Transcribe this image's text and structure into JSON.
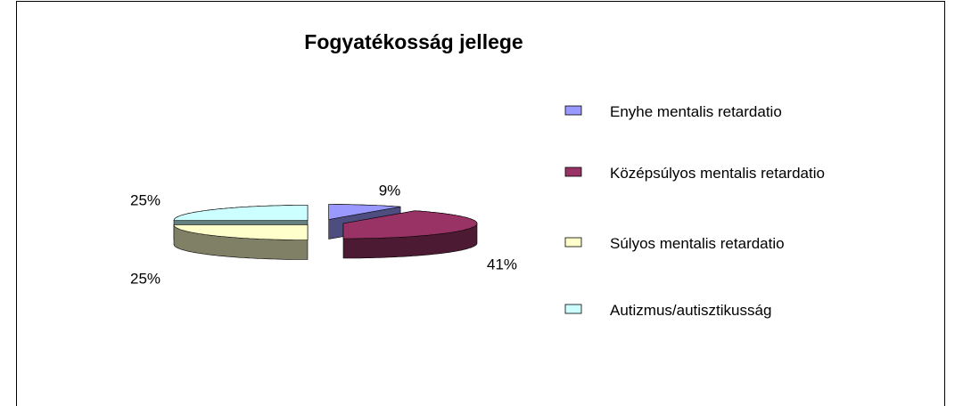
{
  "chart_data": {
    "type": "pie3d",
    "title": "Fogyatékosság jellege",
    "categories": [
      "Enyhe mentalis retardatio",
      "Középsúlyos mentalis retardatio",
      "Súlyos mentalis retardatio",
      "Autizmus/autisztikusság"
    ],
    "values": [
      9,
      41,
      25,
      25
    ],
    "value_labels": [
      "9%",
      "41%",
      "25%",
      "25%"
    ],
    "colors": [
      "#9999ff",
      "#993366",
      "#ffffcc",
      "#ccffff"
    ],
    "legend": "right"
  }
}
